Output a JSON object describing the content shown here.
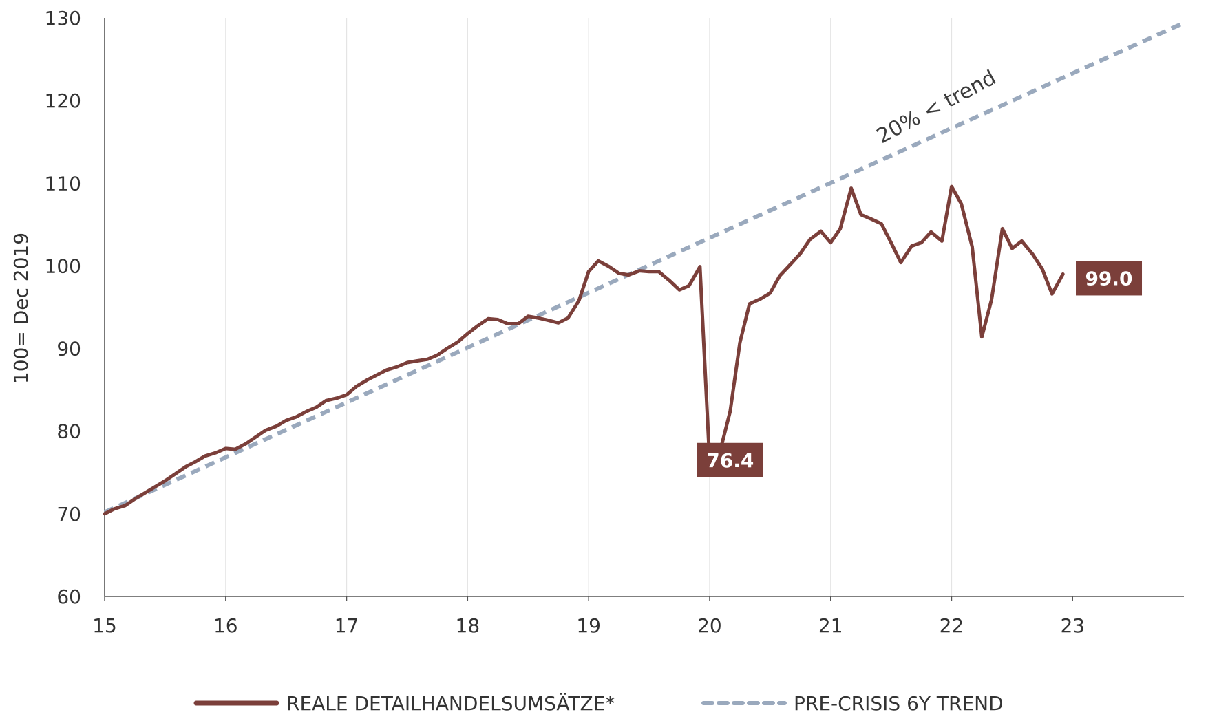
{
  "chart_data": {
    "type": "line",
    "ylabel": "100= Dec 2019",
    "xlim": [
      15,
      23.92
    ],
    "ylim": [
      60,
      130
    ],
    "x_ticks": [
      "15",
      "16",
      "17",
      "18",
      "19",
      "20",
      "21",
      "22",
      "23"
    ],
    "y_ticks": [
      "60",
      "70",
      "80",
      "90",
      "100",
      "110",
      "120",
      "130"
    ],
    "grid": "vertical at year ticks",
    "legend_position": "bottom",
    "series": [
      {
        "name": "REALE DETAILHANDELSUMSÄTZE*",
        "color": "#7b3f3a",
        "style": "solid",
        "x": [
          15.0,
          15.08,
          15.17,
          15.25,
          15.33,
          15.42,
          15.5,
          15.58,
          15.67,
          15.75,
          15.83,
          15.92,
          16.0,
          16.08,
          16.17,
          16.25,
          16.33,
          16.42,
          16.5,
          16.58,
          16.67,
          16.75,
          16.83,
          16.92,
          17.0,
          17.08,
          17.17,
          17.25,
          17.33,
          17.42,
          17.5,
          17.58,
          17.67,
          17.75,
          17.83,
          17.92,
          18.0,
          18.08,
          18.17,
          18.25,
          18.33,
          18.42,
          18.5,
          18.58,
          18.67,
          18.75,
          18.83,
          18.92,
          19.0,
          19.08,
          19.17,
          19.25,
          19.33,
          19.42,
          19.5,
          19.58,
          19.67,
          19.75,
          19.83,
          19.92,
          20.0,
          20.08,
          20.17,
          20.25,
          20.33,
          20.42,
          20.5,
          20.58,
          20.67,
          20.75,
          20.83,
          20.92,
          21.0,
          21.08,
          21.17,
          21.25,
          21.33,
          21.42,
          21.5,
          21.58,
          21.67,
          21.75,
          21.83,
          21.92,
          22.0,
          22.08,
          22.17,
          22.25,
          22.33,
          22.42,
          22.5,
          22.58,
          22.67,
          22.75,
          22.83,
          22.92
        ],
        "values": [
          70.0,
          70.6,
          71.0,
          71.8,
          72.5,
          73.3,
          74.0,
          74.8,
          75.7,
          76.3,
          77.0,
          77.4,
          77.9,
          77.8,
          78.5,
          79.3,
          80.1,
          80.6,
          81.3,
          81.7,
          82.4,
          82.9,
          83.7,
          84.0,
          84.4,
          85.4,
          86.2,
          86.8,
          87.4,
          87.8,
          88.3,
          88.5,
          88.7,
          89.2,
          90.0,
          90.8,
          91.8,
          92.7,
          93.6,
          93.5,
          93.0,
          93.0,
          93.9,
          93.7,
          93.4,
          93.1,
          93.7,
          95.8,
          99.3,
          100.6,
          99.9,
          99.1,
          98.9,
          99.4,
          99.3,
          99.3,
          98.2,
          97.1,
          97.6,
          99.9,
          76.4,
          77.2,
          82.4,
          90.7,
          95.4,
          96.0,
          96.7,
          98.8,
          100.2,
          101.5,
          103.2,
          104.2,
          102.8,
          104.5,
          109.4,
          106.2,
          105.7,
          105.1,
          102.8,
          100.4,
          102.4,
          102.8,
          104.1,
          103.0,
          109.6,
          107.5,
          102.3,
          91.4,
          95.9,
          104.5,
          102.1,
          103.0,
          101.4,
          99.6,
          96.6,
          99.0
        ]
      },
      {
        "name": "PRE-CRISIS 6Y TREND",
        "color": "#9aa9bd",
        "style": "dashed",
        "x": [
          15.0,
          23.92
        ],
        "values": [
          70.2,
          129.4
        ]
      }
    ],
    "annotations": [
      {
        "text": "20% < trend",
        "x": 21.9,
        "y": 118.5
      },
      {
        "text": "76.4",
        "x": 20.17,
        "y": 76.5,
        "style": "badge"
      },
      {
        "text": "99.0",
        "x": 23.3,
        "y": 98.5,
        "style": "badge"
      }
    ],
    "badge_color": "#7b3f3a"
  }
}
